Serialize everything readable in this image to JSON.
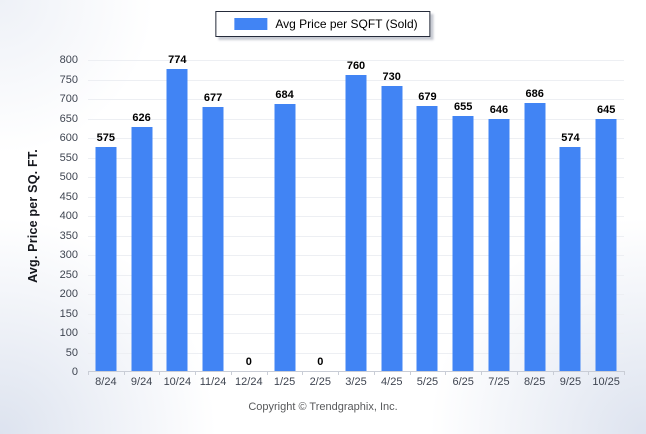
{
  "legend": {
    "label": "Avg Price per SQFT (Sold)"
  },
  "chart_data": {
    "type": "bar",
    "title": "",
    "categories": [
      "8/24",
      "9/24",
      "10/24",
      "11/24",
      "12/24",
      "1/25",
      "2/25",
      "3/25",
      "4/25",
      "5/25",
      "6/25",
      "7/25",
      "8/25",
      "9/25",
      "10/25"
    ],
    "values": [
      575,
      626,
      774,
      677,
      0,
      684,
      0,
      760,
      730,
      679,
      655,
      646,
      686,
      574,
      645
    ],
    "series_name": "Avg Price per SQFT (Sold)",
    "xlabel": "",
    "ylabel": "Avg. Price per SQ. FT.",
    "ylim": [
      0,
      800
    ],
    "ytick_step": 50,
    "grid": true,
    "legend_position": "top",
    "colors": {
      "bar": "#4184f4",
      "grid": "#edeff3",
      "axis": "#c9cdd6",
      "tick_label": "#3f4551",
      "value_label": "#000000",
      "background_edge": "#dde3ef"
    }
  },
  "footer": {
    "copyright": "Copyright © Trendgraphix, Inc."
  }
}
